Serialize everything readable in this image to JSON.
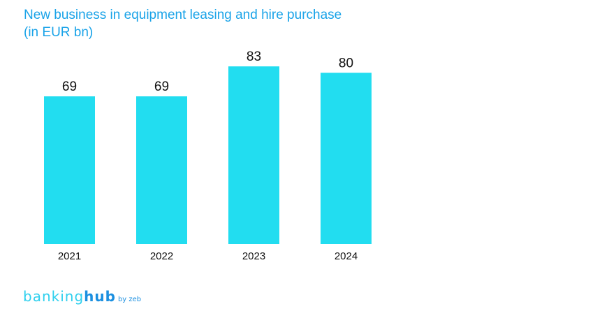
{
  "chart_data": {
    "type": "bar",
    "title": "New business in equipment leasing and hire purchase",
    "subtitle": "(in EUR bn)",
    "categories": [
      "2021",
      "2022",
      "2023",
      "2024"
    ],
    "values": [
      69,
      69,
      83,
      80
    ],
    "data_labels": [
      "69",
      "69",
      "83",
      "80"
    ],
    "ylim": [
      0,
      100
    ],
    "grid": false,
    "bar_color": "#22DDF0",
    "title_color": "#1AA3E8"
  },
  "logo": {
    "part1": "banking",
    "part2": "hub",
    "part3": "by zeb"
  }
}
